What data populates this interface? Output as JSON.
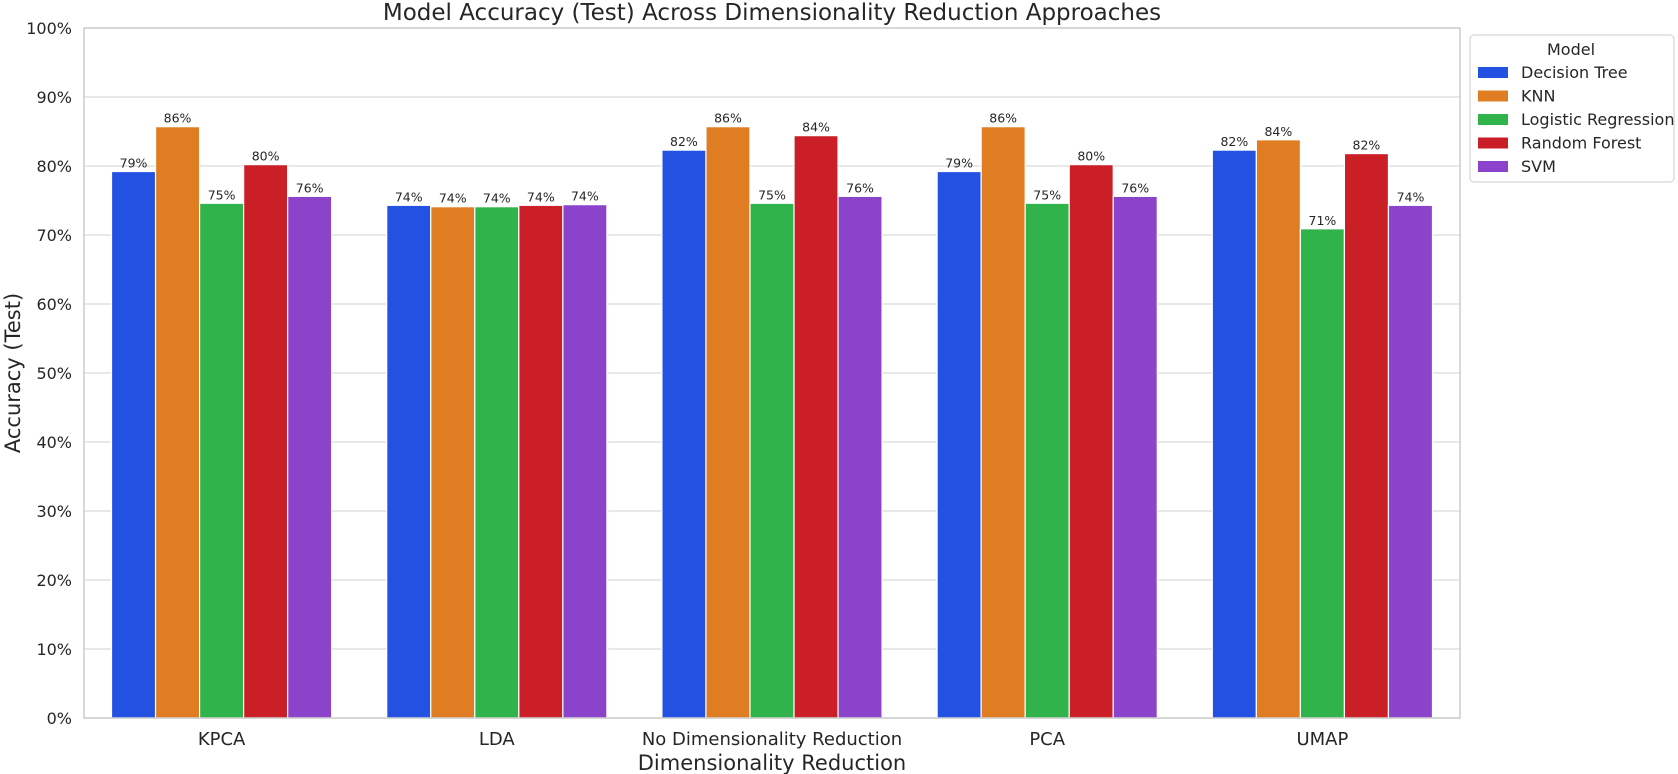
{
  "chart_data": {
    "type": "bar",
    "title": "Model Accuracy (Test) Across Dimensionality Reduction Approaches",
    "xlabel": "Dimensionality Reduction",
    "ylabel": "Accuracy (Test)",
    "ylim": [
      0,
      100
    ],
    "yticks": [
      "0%",
      "10%",
      "20%",
      "30%",
      "40%",
      "50%",
      "60%",
      "70%",
      "80%",
      "90%",
      "100%"
    ],
    "grid": true,
    "legend_title": "Model",
    "legend_position": "outside-top-right",
    "categories": [
      "KPCA",
      "LDA",
      "No Dimensionality Reduction",
      "PCA",
      "UMAP"
    ],
    "series": [
      {
        "name": "Decision Tree",
        "color": "#2351e2",
        "values": [
          79.2,
          74.3,
          82.3,
          79.2,
          82.3
        ],
        "labels": [
          "79%",
          "74%",
          "82%",
          "79%",
          "82%"
        ]
      },
      {
        "name": "KNN",
        "color": "#e07c22",
        "values": [
          85.7,
          74.1,
          85.7,
          85.7,
          83.8
        ],
        "labels": [
          "86%",
          "74%",
          "86%",
          "86%",
          "84%"
        ]
      },
      {
        "name": "Logistic Regression",
        "color": "#2fb34a",
        "values": [
          74.6,
          74.1,
          74.6,
          74.6,
          70.9
        ],
        "labels": [
          "75%",
          "74%",
          "75%",
          "75%",
          "71%"
        ]
      },
      {
        "name": "Random Forest",
        "color": "#cb1f28",
        "values": [
          80.2,
          74.3,
          84.4,
          80.2,
          81.8
        ],
        "labels": [
          "80%",
          "74%",
          "84%",
          "80%",
          "82%"
        ]
      },
      {
        "name": "SVM",
        "color": "#8b43cb",
        "values": [
          75.6,
          74.4,
          75.6,
          75.6,
          74.3
        ],
        "labels": [
          "76%",
          "74%",
          "76%",
          "76%",
          "74%"
        ]
      }
    ]
  }
}
